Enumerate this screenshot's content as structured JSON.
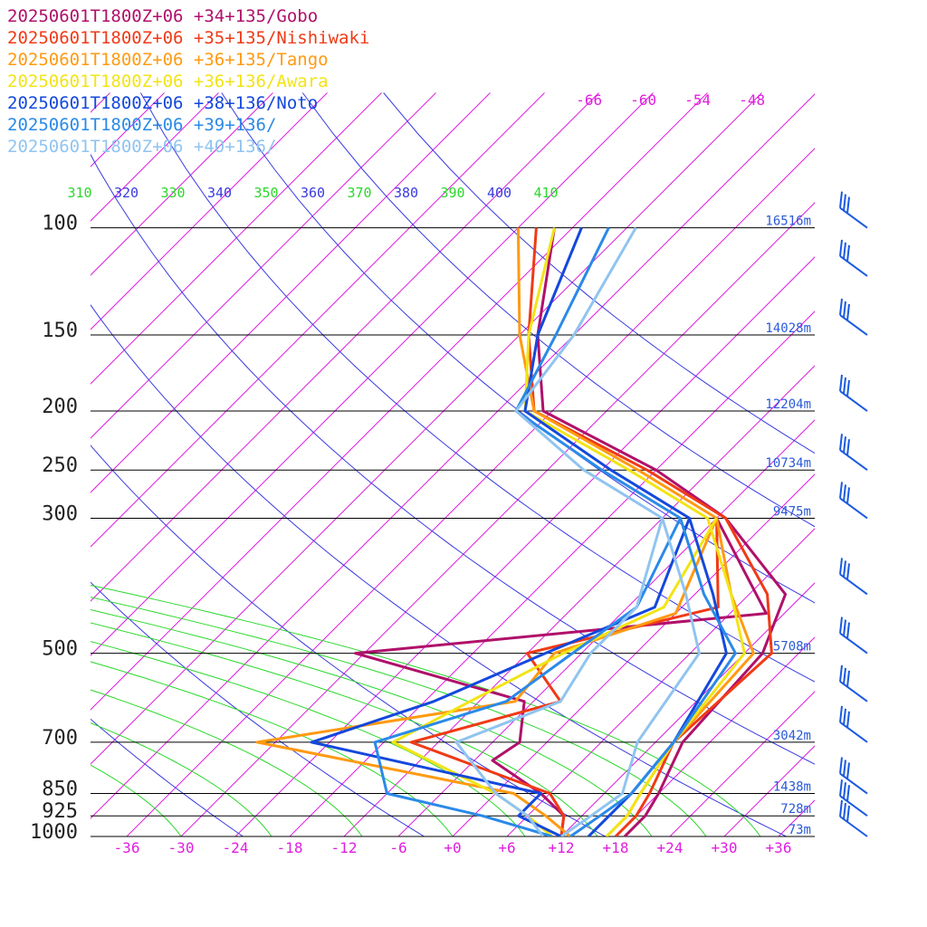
{
  "chart_data": {
    "type": "line",
    "legend": [
      {
        "label": "20250601T1800Z+06 +34+135/Gobo",
        "color": "#b0106a"
      },
      {
        "label": "20250601T1800Z+06 +35+135/Nishiwaki",
        "color": "#f03a16"
      },
      {
        "label": "20250601T1800Z+06 +36+135/Tango",
        "color": "#ff9a12"
      },
      {
        "label": "20250601T1800Z+06 +36+136/Awara",
        "color": "#f2e416"
      },
      {
        "label": "20250601T1800Z+06 +38+136/Noto",
        "color": "#1448dc"
      },
      {
        "label": "20250601T1800Z+06 +39+136/",
        "color": "#2a8ae8"
      },
      {
        "label": "20250601T1800Z+06 +40+136/",
        "color": "#90c4f0"
      }
    ],
    "pressure_levels": [
      {
        "p": 100,
        "label": "100",
        "height": "16516m"
      },
      {
        "p": 150,
        "label": "150",
        "height": "14028m"
      },
      {
        "p": 200,
        "label": "200",
        "height": "12204m"
      },
      {
        "p": 250,
        "label": "250",
        "height": "10734m"
      },
      {
        "p": 300,
        "label": "300",
        "height": "9475m"
      },
      {
        "p": 500,
        "label": "500",
        "height": "5708m"
      },
      {
        "p": 700,
        "label": "700",
        "height": "3042m"
      },
      {
        "p": 850,
        "label": "850",
        "height": "1438m"
      },
      {
        "p": 925,
        "label": "925",
        "height": "728m"
      },
      {
        "p": 1000,
        "label": "1000",
        "height": "73m"
      }
    ],
    "x_ticks": [
      "-36",
      "-30",
      "-24",
      "-18",
      "-12",
      "-6",
      "+0",
      "+6",
      "+12",
      "+18",
      "+24",
      "+30",
      "+36"
    ],
    "x_tick_values": [
      -36,
      -30,
      -24,
      -18,
      -12,
      -6,
      0,
      6,
      12,
      18,
      24,
      30,
      36
    ],
    "upper_isotherm_labels": [
      "-66",
      "-60",
      "-54",
      "-48"
    ],
    "theta_labels": [
      "310",
      "320",
      "330",
      "340",
      "350",
      "360",
      "370",
      "380",
      "390",
      "400",
      "410"
    ],
    "xlim": [
      -40,
      40
    ],
    "ylim": [
      1000,
      100
    ],
    "log_pressure": true,
    "grid": true,
    "skew": true,
    "colors": {
      "isotherm": "#e01ee0",
      "theta_dry": "#3a3ae0",
      "theta_moist": "#2ad82a",
      "pressure_line": "#000000",
      "height_label": "#2a5ad8",
      "wind": "#1a5ae0"
    },
    "series": [
      {
        "name": "20250601T1800Z+06 +34+135/Gobo",
        "color": "#b0106a",
        "points": [
          [
            1000,
            19
          ],
          [
            925,
            19
          ],
          [
            850,
            18
          ],
          [
            700,
            15
          ],
          [
            500,
            14
          ],
          [
            400,
            10
          ],
          [
            300,
            -5
          ],
          [
            250,
            -18
          ],
          [
            200,
            -37
          ],
          [
            150,
            -46
          ],
          [
            100,
            -56
          ]
        ],
        "dew": [
          [
            1000,
            12
          ],
          [
            925,
            10
          ],
          [
            850,
            5
          ],
          [
            750,
            -4
          ],
          [
            700,
            -3
          ],
          [
            600,
            -7
          ],
          [
            500,
            -31
          ],
          [
            430,
            10
          ],
          [
            300,
            -6
          ]
        ]
      },
      {
        "name": "20250601T1800Z+06 +35+135/Nishiwaki",
        "color": "#f03a16",
        "points": [
          [
            1000,
            18
          ],
          [
            925,
            18
          ],
          [
            850,
            17
          ],
          [
            700,
            14
          ],
          [
            500,
            15
          ],
          [
            400,
            8
          ],
          [
            300,
            -5
          ],
          [
            250,
            -19
          ],
          [
            200,
            -38
          ],
          [
            150,
            -47
          ],
          [
            100,
            -58
          ]
        ],
        "dew": [
          [
            1000,
            12
          ],
          [
            925,
            10
          ],
          [
            850,
            6
          ],
          [
            700,
            -15
          ],
          [
            600,
            -3
          ],
          [
            500,
            -12
          ],
          [
            420,
            4
          ],
          [
            300,
            -6
          ]
        ]
      },
      {
        "name": "20250601T1800Z+06 +36+135/Tango",
        "color": "#ff9a12",
        "points": [
          [
            1000,
            17
          ],
          [
            925,
            17
          ],
          [
            850,
            16
          ],
          [
            700,
            14
          ],
          [
            500,
            13
          ],
          [
            400,
            4
          ],
          [
            300,
            -6
          ],
          [
            250,
            -20
          ],
          [
            200,
            -38
          ],
          [
            150,
            -48
          ],
          [
            100,
            -60
          ]
        ],
        "dew": [
          [
            1000,
            13
          ],
          [
            925,
            8
          ],
          [
            850,
            2
          ],
          [
            700,
            -32
          ],
          [
            600,
            -8
          ],
          [
            500,
            -9
          ],
          [
            430,
            0
          ],
          [
            300,
            -6
          ]
        ]
      },
      {
        "name": "20250601T1800Z+06 +36+136/Awara",
        "color": "#f2e416",
        "points": [
          [
            1000,
            17
          ],
          [
            925,
            17
          ],
          [
            850,
            16
          ],
          [
            700,
            14
          ],
          [
            500,
            12
          ],
          [
            400,
            4
          ],
          [
            300,
            -7
          ],
          [
            250,
            -21
          ],
          [
            200,
            -39
          ],
          [
            150,
            -47
          ],
          [
            100,
            -56
          ]
        ],
        "dew": [
          [
            1000,
            11
          ],
          [
            925,
            6
          ],
          [
            850,
            0
          ],
          [
            700,
            -17
          ],
          [
            600,
            -13
          ],
          [
            500,
            -8
          ],
          [
            420,
            -2
          ],
          [
            300,
            -6
          ]
        ]
      },
      {
        "name": "20250601T1800Z+06 +38+136/Noto",
        "color": "#1448dc",
        "points": [
          [
            1000,
            15
          ],
          [
            925,
            15
          ],
          [
            850,
            15
          ],
          [
            700,
            14
          ],
          [
            500,
            10
          ],
          [
            400,
            2
          ],
          [
            300,
            -9
          ],
          [
            250,
            -23
          ],
          [
            200,
            -39
          ],
          [
            150,
            -46
          ],
          [
            100,
            -53
          ]
        ],
        "dew": [
          [
            1000,
            12
          ],
          [
            925,
            5
          ],
          [
            850,
            5
          ],
          [
            700,
            -26
          ],
          [
            600,
            -17
          ],
          [
            500,
            -10
          ],
          [
            420,
            -3
          ],
          [
            300,
            -9
          ]
        ]
      },
      {
        "name": "20250601T1800Z+06 +39+136/",
        "color": "#2a8ae8",
        "points": [
          [
            1000,
            13
          ],
          [
            925,
            14
          ],
          [
            850,
            15
          ],
          [
            700,
            14
          ],
          [
            500,
            11
          ],
          [
            400,
            1
          ],
          [
            300,
            -10
          ],
          [
            250,
            -24
          ],
          [
            200,
            -40
          ],
          [
            150,
            -44
          ],
          [
            100,
            -50
          ]
        ],
        "dew": [
          [
            1000,
            11
          ],
          [
            925,
            1
          ],
          [
            850,
            -12
          ],
          [
            700,
            -19
          ],
          [
            600,
            -9
          ],
          [
            500,
            -7
          ],
          [
            420,
            -5
          ],
          [
            300,
            -10
          ]
        ]
      },
      {
        "name": "20250601T1800Z+06 +40+136/",
        "color": "#90c4f0",
        "points": [
          [
            1000,
            12
          ],
          [
            925,
            13
          ],
          [
            850,
            14
          ],
          [
            700,
            10
          ],
          [
            500,
            7
          ],
          [
            400,
            -1
          ],
          [
            300,
            -12
          ],
          [
            250,
            -26
          ],
          [
            200,
            -40
          ],
          [
            150,
            -42
          ],
          [
            100,
            -47
          ]
        ],
        "dew": [
          [
            1000,
            10
          ],
          [
            925,
            6
          ],
          [
            850,
            0
          ],
          [
            700,
            -10
          ],
          [
            600,
            -3
          ],
          [
            500,
            -5
          ],
          [
            420,
            -5
          ],
          [
            300,
            -12
          ]
        ]
      }
    ],
    "wind_barbs": [
      {
        "p": 1000
      },
      {
        "p": 925
      },
      {
        "p": 850
      },
      {
        "p": 700
      },
      {
        "p": 600
      },
      {
        "p": 500
      },
      {
        "p": 400
      },
      {
        "p": 300
      },
      {
        "p": 250
      },
      {
        "p": 200
      },
      {
        "p": 150
      },
      {
        "p": 120
      },
      {
        "p": 100
      }
    ]
  }
}
